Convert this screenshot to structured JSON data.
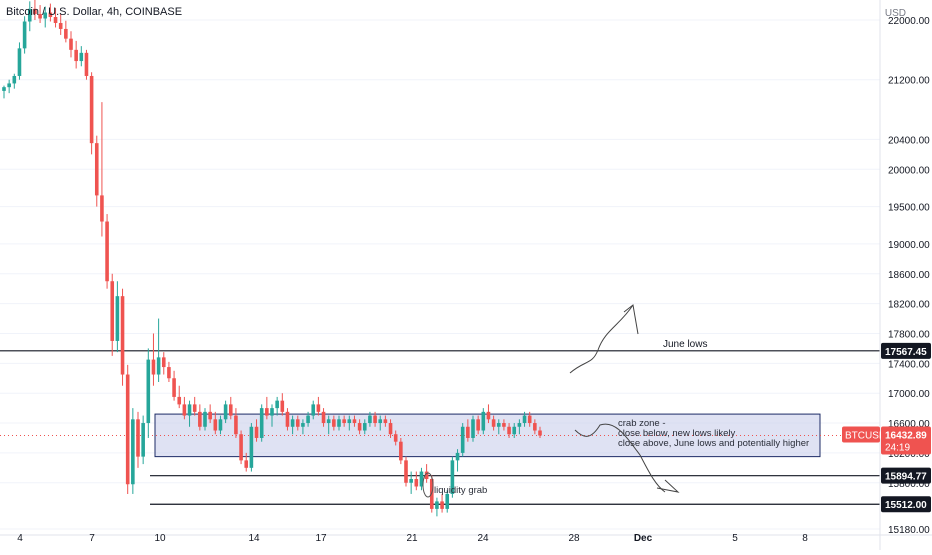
{
  "header": {
    "title": "Bitcoin / U.S. Dollar, 4h, COINBASE"
  },
  "colors": {
    "up": "#26a69a",
    "down": "#ef5350",
    "zone_fill": "#c5cbe9",
    "zone_stroke": "#1c2b66",
    "line": "#131722",
    "grid": "#f0f3fa",
    "current": "#ef5350"
  },
  "chart_data": {
    "type": "candlestick",
    "title": "Bitcoin / U.S. Dollar, 4h, COINBASE",
    "y_unit": "USD",
    "y_ticks": [
      "22000.00",
      "21200.00",
      "20400.00",
      "20000.00",
      "19500.00",
      "19000.00",
      "18600.00",
      "18200.00",
      "17800.00",
      "17400.00",
      "17000.00",
      "16600.00",
      "16200.00",
      "15800.00",
      "15180.00"
    ],
    "x_ticks": [
      "4",
      "7",
      "10",
      "14",
      "17",
      "21",
      "24",
      "28",
      "Dec",
      "5",
      "8"
    ],
    "candles": [
      [
        21050,
        21120,
        20950,
        21100
      ],
      [
        21100,
        21200,
        21020,
        21150
      ],
      [
        21150,
        21280,
        21080,
        21250
      ],
      [
        21250,
        21700,
        21200,
        21620
      ],
      [
        21620,
        22050,
        21550,
        21980
      ],
      [
        21980,
        22250,
        21850,
        22150
      ],
      [
        22150,
        22300,
        22000,
        22080
      ],
      [
        22080,
        22200,
        21960,
        22020
      ],
      [
        22020,
        22180,
        21900,
        22100
      ],
      [
        22100,
        22220,
        21980,
        22040
      ],
      [
        22040,
        22160,
        21900,
        21960
      ],
      [
        21960,
        22080,
        21800,
        21880
      ],
      [
        21880,
        21990,
        21700,
        21750
      ],
      [
        21750,
        21850,
        21500,
        21600
      ],
      [
        21600,
        21720,
        21350,
        21450
      ],
      [
        21450,
        21650,
        21380,
        21560
      ],
      [
        21560,
        21600,
        21200,
        21250
      ],
      [
        21250,
        21300,
        20200,
        20350
      ],
      [
        20350,
        20450,
        19500,
        19650
      ],
      [
        19650,
        20900,
        19100,
        19300
      ],
      [
        19300,
        19400,
        18400,
        18500
      ],
      [
        18500,
        18600,
        17500,
        17700
      ],
      [
        17700,
        18500,
        17550,
        18300
      ],
      [
        18300,
        18400,
        17100,
        17250
      ],
      [
        17250,
        17380,
        15650,
        15780
      ],
      [
        15780,
        16800,
        15650,
        16650
      ],
      [
        16650,
        16750,
        16000,
        16150
      ],
      [
        16150,
        16700,
        16050,
        16600
      ],
      [
        16600,
        17600,
        16400,
        17450
      ],
      [
        17450,
        17800,
        17100,
        17250
      ],
      [
        17250,
        18000,
        17150,
        17480
      ],
      [
        17480,
        17550,
        17250,
        17350
      ],
      [
        17350,
        17420,
        17150,
        17200
      ],
      [
        17200,
        17300,
        16900,
        16950
      ],
      [
        16950,
        17100,
        16800,
        16850
      ],
      [
        16850,
        16950,
        16650,
        16700
      ],
      [
        16700,
        16900,
        16550,
        16850
      ],
      [
        16850,
        16950,
        16700,
        16750
      ],
      [
        16750,
        16850,
        16500,
        16550
      ],
      [
        16550,
        16800,
        16500,
        16750
      ],
      [
        16750,
        16850,
        16600,
        16650
      ],
      [
        16650,
        16750,
        16450,
        16500
      ],
      [
        16500,
        16700,
        16450,
        16650
      ],
      [
        16650,
        16900,
        16600,
        16850
      ],
      [
        16850,
        16950,
        16650,
        16700
      ],
      [
        16700,
        16800,
        16400,
        16450
      ],
      [
        16450,
        16500,
        16050,
        16100
      ],
      [
        16100,
        16200,
        15950,
        16000
      ],
      [
        16000,
        16600,
        15950,
        16550
      ],
      [
        16550,
        16650,
        16350,
        16400
      ],
      [
        16400,
        16850,
        16350,
        16800
      ],
      [
        16800,
        16950,
        16650,
        16700
      ],
      [
        16700,
        16850,
        16550,
        16800
      ],
      [
        16800,
        16950,
        16700,
        16900
      ],
      [
        16900,
        17000,
        16700,
        16750
      ],
      [
        16750,
        16800,
        16500,
        16550
      ],
      [
        16550,
        16700,
        16450,
        16650
      ],
      [
        16650,
        16700,
        16500,
        16550
      ],
      [
        16550,
        16650,
        16450,
        16600
      ],
      [
        16600,
        16750,
        16550,
        16700
      ],
      [
        16700,
        16900,
        16650,
        16850
      ],
      [
        16850,
        16950,
        16700,
        16750
      ],
      [
        16750,
        16800,
        16550,
        16600
      ],
      [
        16600,
        16700,
        16450,
        16650
      ],
      [
        16650,
        16700,
        16500,
        16550
      ],
      [
        16550,
        16700,
        16500,
        16650
      ],
      [
        16650,
        16700,
        16550,
        16600
      ],
      [
        16600,
        16700,
        16500,
        16650
      ],
      [
        16650,
        16700,
        16550,
        16600
      ],
      [
        16600,
        16650,
        16450,
        16500
      ],
      [
        16500,
        16650,
        16450,
        16600
      ],
      [
        16600,
        16750,
        16550,
        16700
      ],
      [
        16700,
        16750,
        16550,
        16600
      ],
      [
        16600,
        16700,
        16500,
        16650
      ],
      [
        16650,
        16700,
        16550,
        16600
      ],
      [
        16600,
        16650,
        16400,
        16450
      ],
      [
        16450,
        16500,
        16300,
        16350
      ],
      [
        16350,
        16400,
        16050,
        16100
      ],
      [
        16100,
        16150,
        15750,
        15800
      ],
      [
        15800,
        15950,
        15650,
        15850
      ],
      [
        15850,
        15950,
        15700,
        15750
      ],
      [
        15750,
        16000,
        15700,
        15950
      ],
      [
        15950,
        16050,
        15800,
        15850
      ],
      [
        15850,
        15900,
        15400,
        15450
      ],
      [
        15450,
        15600,
        15350,
        15550
      ],
      [
        15550,
        15650,
        15400,
        15450
      ],
      [
        15450,
        15700,
        15400,
        15650
      ],
      [
        15650,
        16150,
        15600,
        16100
      ],
      [
        16100,
        16250,
        15950,
        16200
      ],
      [
        16200,
        16600,
        16150,
        16550
      ],
      [
        16550,
        16650,
        16350,
        16400
      ],
      [
        16400,
        16700,
        16350,
        16650
      ],
      [
        16650,
        16700,
        16450,
        16500
      ],
      [
        16500,
        16800,
        16450,
        16750
      ],
      [
        16750,
        16850,
        16600,
        16650
      ],
      [
        16650,
        16700,
        16500,
        16550
      ],
      [
        16550,
        16650,
        16450,
        16600
      ],
      [
        16600,
        16650,
        16500,
        16550
      ],
      [
        16550,
        16600,
        16400,
        16450
      ],
      [
        16450,
        16600,
        16400,
        16550
      ],
      [
        16550,
        16650,
        16450,
        16600
      ],
      [
        16600,
        16750,
        16550,
        16700
      ],
      [
        16700,
        16750,
        16550,
        16600
      ],
      [
        16600,
        16650,
        16450,
        16500
      ],
      [
        16500,
        16550,
        16400,
        16433
      ]
    ],
    "levels": [
      {
        "label": "17567.45",
        "value": 17567.45
      },
      {
        "label": "15894.77",
        "value": 15894.77
      },
      {
        "label": "15512.00",
        "value": 15512.0
      }
    ],
    "current_price": {
      "symbol": "BTCUSD",
      "value": "16432.89",
      "countdown": "24:19"
    },
    "zone": {
      "top": 16720,
      "bottom": 16150
    },
    "annotations": {
      "june_lows": "June lows",
      "crab_zone": [
        "crab zone -",
        "close below, new lows likely",
        "close above, June lows and potentially higher"
      ],
      "liquidity_grab": "liquidity grab"
    }
  }
}
